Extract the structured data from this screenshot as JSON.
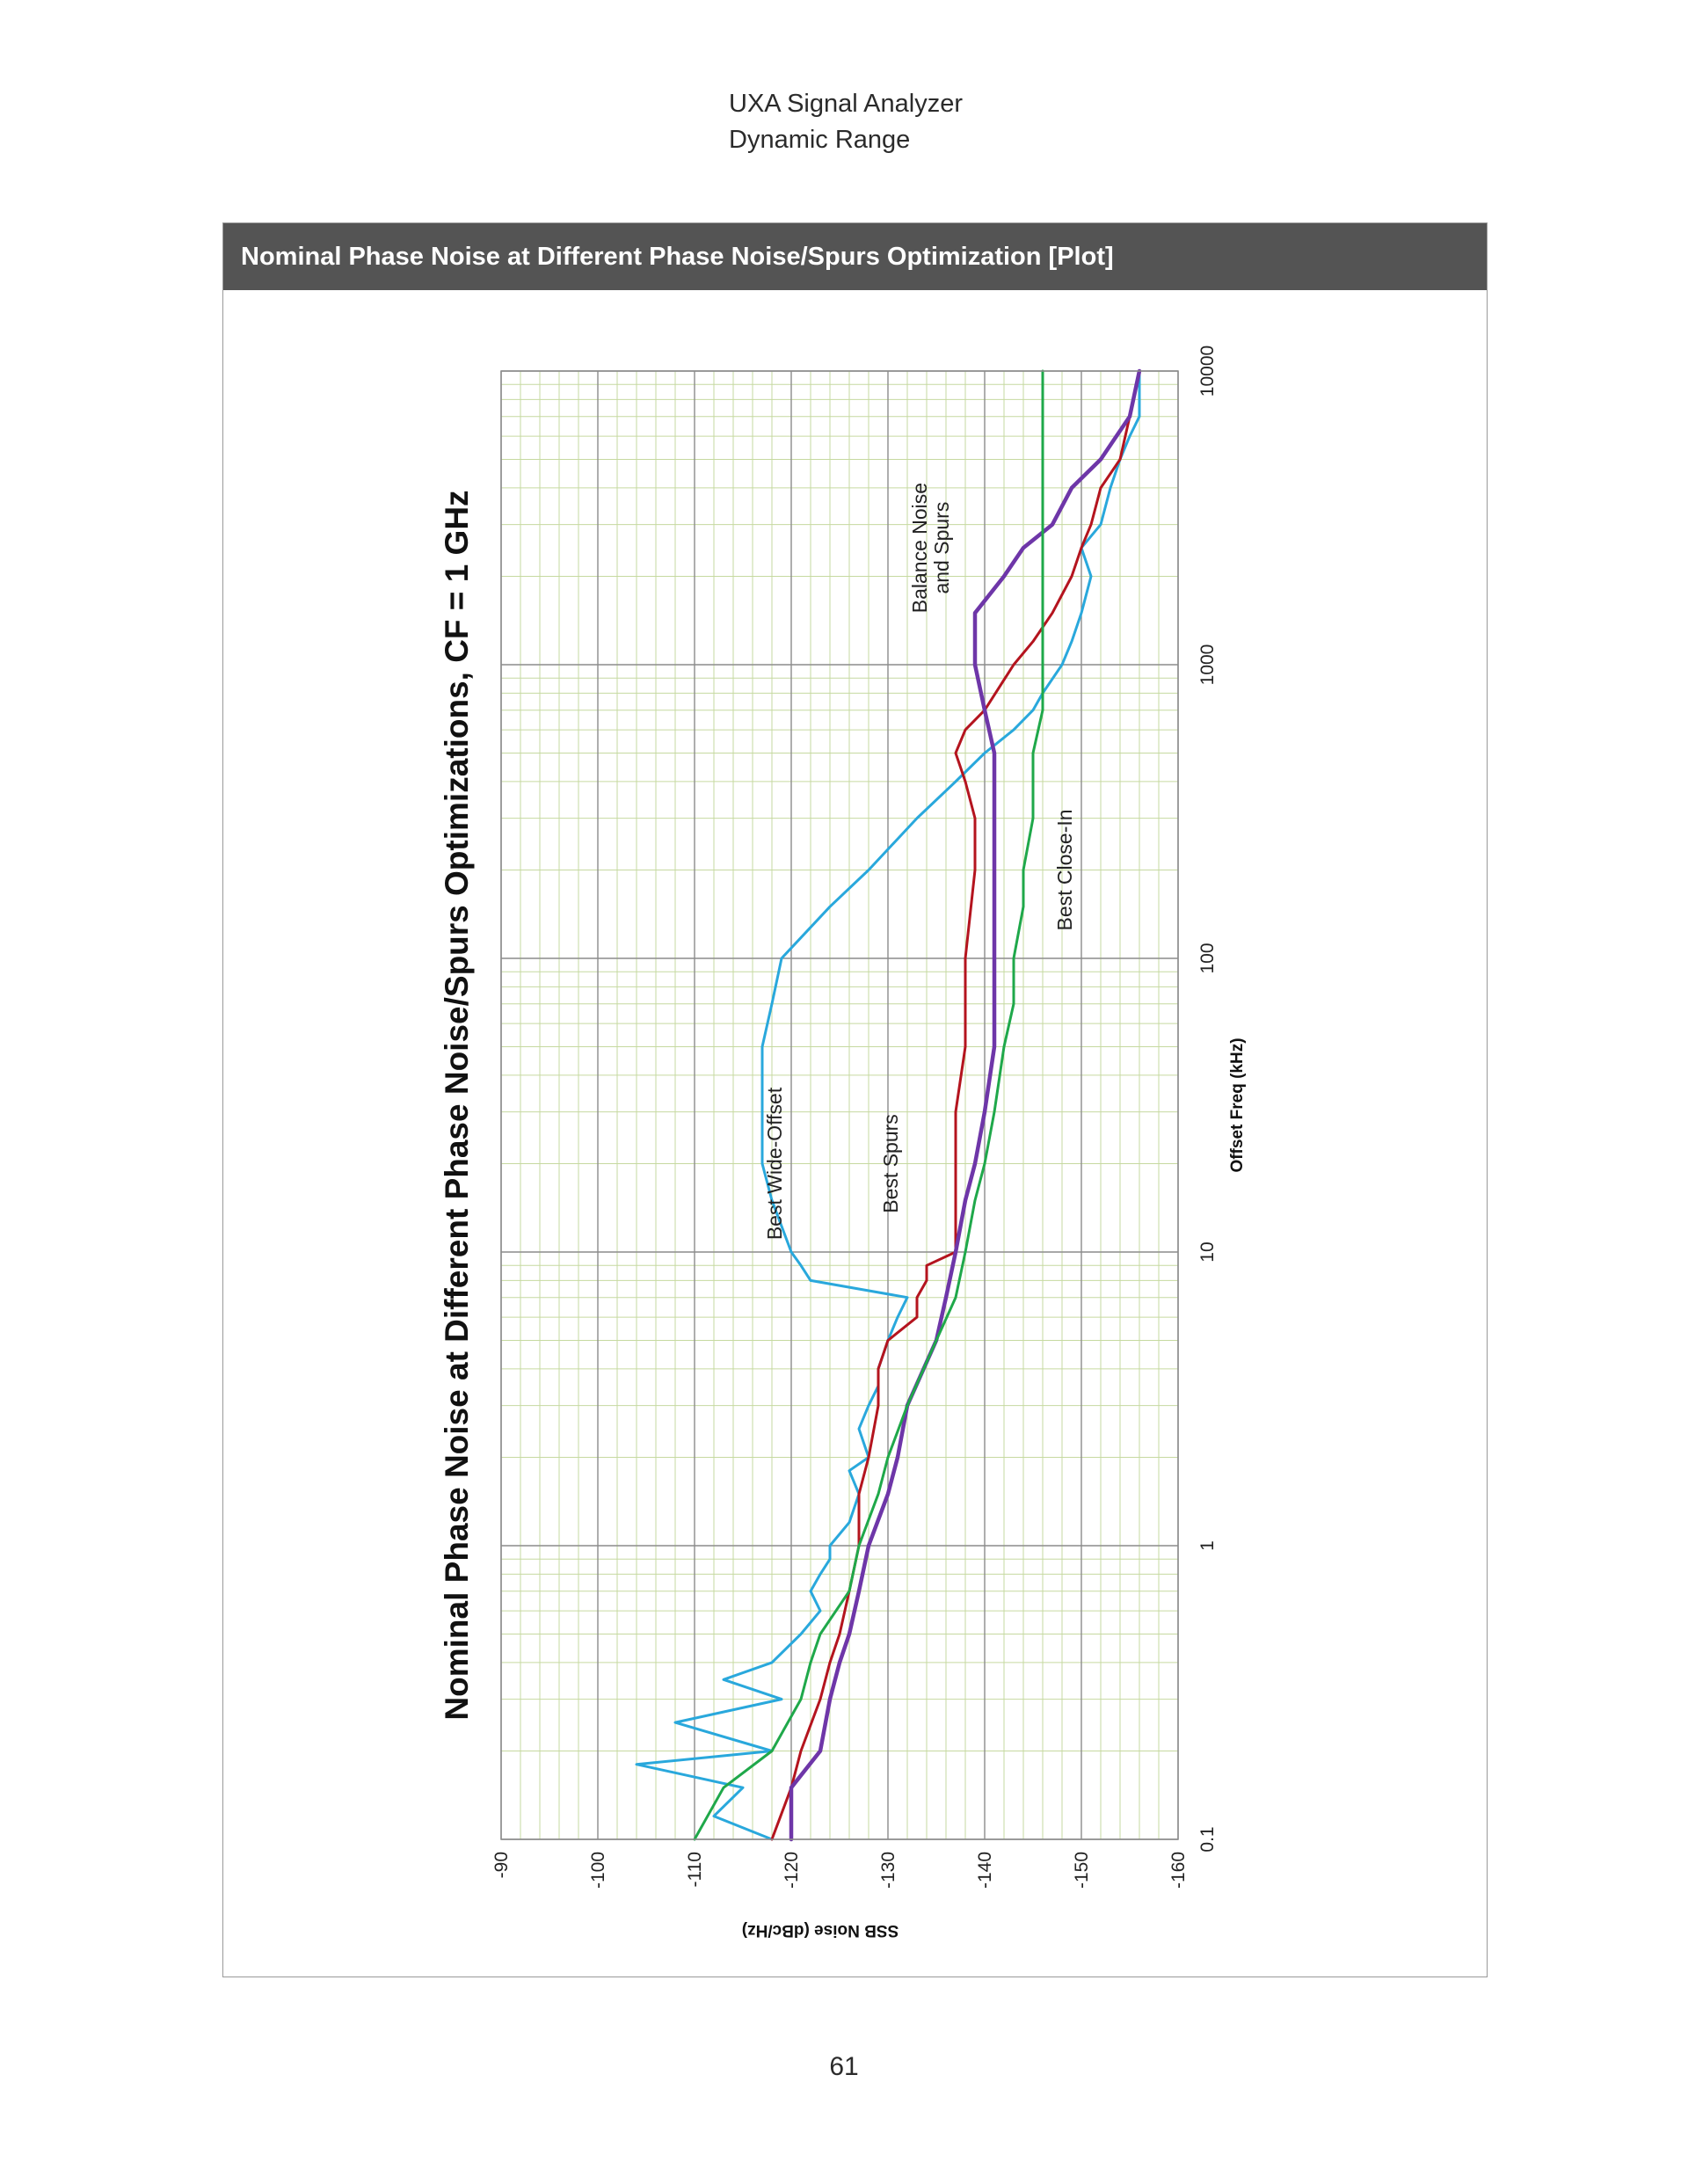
{
  "page": {
    "header_line1": "UXA Signal Analyzer",
    "header_line2": "Dynamic Range",
    "figure_title": "Nominal Phase Noise at Different Phase Noise/Spurs Optimization [Plot]",
    "page_number": "61"
  },
  "colors": {
    "best_wide_offset": "#29a8dc",
    "best_spurs": "#b4141e",
    "balance_noise_and_spurs": "#6e36a8",
    "best_close_in": "#1fa84a",
    "grid_major": "#8c8c8c",
    "grid_minor": "#c6d9a0"
  },
  "chart_data": {
    "type": "line",
    "title": "Nominal Phase Noise at Different Phase Noise/Spurs Optimizations, CF = 1 GHz",
    "xlabel": "Offset Freq (kHz)",
    "ylabel": "SSB Noise (dBc/Hz)",
    "x_scale": "log",
    "xlim": [
      0.1,
      10000
    ],
    "ylim": [
      -160,
      -90
    ],
    "x_ticks": [
      "0.1",
      "1",
      "10",
      "100",
      "1000",
      "10000"
    ],
    "y_ticks": [
      "-90",
      "-100",
      "-110",
      "-120",
      "-130",
      "-140",
      "-150",
      "-160"
    ],
    "orientation": "rotated 90 degrees counter-clockwise",
    "grid": true,
    "series": [
      {
        "name": "Best Wide-Offset",
        "x": [
          0.1,
          0.12,
          0.15,
          0.18,
          0.2,
          0.25,
          0.3,
          0.35,
          0.4,
          0.5,
          0.6,
          0.7,
          0.8,
          0.9,
          1,
          1.2,
          1.5,
          1.8,
          2,
          2.5,
          3,
          3.5,
          4,
          5,
          6,
          7,
          8,
          9,
          10,
          15,
          20,
          30,
          50,
          70,
          100,
          150,
          200,
          300,
          400,
          500,
          600,
          700,
          800,
          1000,
          1200,
          1500,
          2000,
          2500,
          3000,
          4000,
          5000,
          6000,
          7000,
          8000,
          9000,
          9500,
          9800,
          10000
        ],
        "y": [
          -118,
          -112,
          -115,
          -104,
          -118,
          -108,
          -119,
          -113,
          -118,
          -121,
          -123,
          -122,
          -123,
          -124,
          -124,
          -126,
          -127,
          -126,
          -128,
          -127,
          -128,
          -129,
          -129,
          -130,
          -131,
          -132,
          -122,
          -121,
          -120,
          -118,
          -117,
          -117,
          -117,
          -118,
          -119,
          -124,
          -128,
          -133,
          -137,
          -140,
          -143,
          -145,
          -146,
          -148,
          -149,
          -150,
          -151,
          -150,
          -152,
          -153,
          -154,
          -155,
          -156,
          -156,
          -156,
          -156,
          -156,
          -156
        ]
      },
      {
        "name": "Best Spurs",
        "x": [
          0.1,
          0.15,
          0.2,
          0.3,
          0.4,
          0.5,
          0.7,
          1,
          1.5,
          2,
          3,
          4,
          5,
          6,
          7,
          8,
          9,
          10,
          20,
          30,
          50,
          70,
          100,
          200,
          300,
          400,
          500,
          600,
          700,
          1000,
          1200,
          1500,
          2000,
          2500,
          3000,
          4000,
          5000,
          7000,
          10000
        ],
        "y": [
          -118,
          -120,
          -121,
          -123,
          -124,
          -125,
          -126,
          -127,
          -127,
          -128,
          -129,
          -129,
          -130,
          -133,
          -133,
          -134,
          -134,
          -137,
          -137,
          -137,
          -138,
          -138,
          -138,
          -139,
          -139,
          -138,
          -137,
          -138,
          -140,
          -143,
          -145,
          -147,
          -149,
          -150,
          -151,
          -152,
          -154,
          -155,
          -156
        ]
      },
      {
        "name": "Balance Noise and Spurs",
        "x": [
          0.1,
          0.15,
          0.2,
          0.3,
          0.4,
          0.5,
          0.7,
          1,
          1.5,
          2,
          3,
          5,
          7,
          10,
          15,
          20,
          30,
          50,
          70,
          100,
          150,
          200,
          300,
          500,
          700,
          1000,
          1500,
          2000,
          2500,
          3000,
          4000,
          5000,
          7000,
          10000
        ],
        "y": [
          -120,
          -120,
          -123,
          -124,
          -125,
          -126,
          -127,
          -128,
          -130,
          -131,
          -132,
          -135,
          -136,
          -137,
          -138,
          -139,
          -140,
          -141,
          -141,
          -141,
          -141,
          -141,
          -141,
          -141,
          -140,
          -139,
          -139,
          -142,
          -144,
          -147,
          -149,
          -152,
          -155,
          -156
        ]
      },
      {
        "name": "Best Close-In",
        "x": [
          0.1,
          0.15,
          0.2,
          0.3,
          0.4,
          0.5,
          0.7,
          1,
          1.5,
          2,
          3,
          5,
          7,
          10,
          15,
          20,
          30,
          50,
          70,
          100,
          150,
          200,
          300,
          500,
          700,
          1000,
          1500,
          2000,
          3000,
          5000,
          7000,
          10000
        ],
        "y": [
          -110,
          -113,
          -118,
          -121,
          -122,
          -123,
          -126,
          -127,
          -129,
          -130,
          -132,
          -135,
          -137,
          -138,
          -139,
          -140,
          -141,
          -142,
          -143,
          -143,
          -144,
          -144,
          -145,
          -145,
          -146,
          -146,
          -146,
          -146,
          -146,
          -146,
          -146,
          -146
        ]
      }
    ]
  }
}
